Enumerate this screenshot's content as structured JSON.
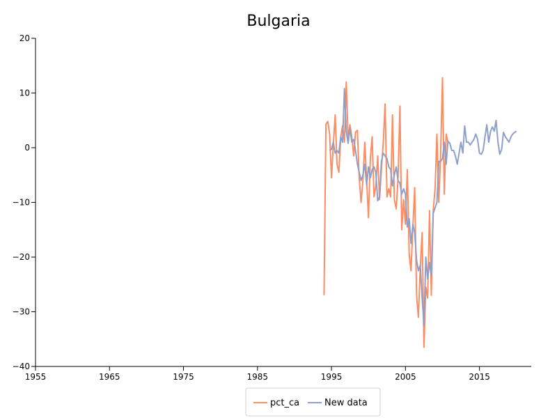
{
  "chart_data": {
    "type": "line",
    "title": "Bulgaria",
    "xlabel": "",
    "ylabel": "",
    "xlim": [
      1955,
      2022
    ],
    "ylim": [
      -40,
      20
    ],
    "x_ticks": [
      1955,
      1965,
      1975,
      1985,
      1995,
      2005,
      2015
    ],
    "y_ticks": [
      -40,
      -30,
      -20,
      -10,
      0,
      10,
      20
    ],
    "grid": false,
    "legend": "bottom-center",
    "series": [
      {
        "name": "pct_ca",
        "color": "#fc8d62",
        "x": [
          1994.0,
          1994.25,
          1994.5,
          1994.75,
          1995.0,
          1995.25,
          1995.5,
          1995.75,
          1996.0,
          1996.25,
          1996.5,
          1996.75,
          1997.0,
          1997.25,
          1997.5,
          1997.75,
          1998.0,
          1998.25,
          1998.5,
          1998.75,
          1999.0,
          1999.25,
          1999.5,
          1999.75,
          2000.0,
          2000.25,
          2000.5,
          2000.75,
          2001.0,
          2001.25,
          2001.5,
          2001.75,
          2002.0,
          2002.25,
          2002.5,
          2002.75,
          2003.0,
          2003.25,
          2003.5,
          2003.75,
          2004.0,
          2004.25,
          2004.5,
          2004.75,
          2005.0,
          2005.25,
          2005.5,
          2005.75,
          2006.0,
          2006.25,
          2006.5,
          2006.75,
          2007.0,
          2007.25,
          2007.5,
          2007.75,
          2008.0,
          2008.25,
          2008.5,
          2008.75,
          2009.0,
          2009.25,
          2009.5,
          2009.75,
          2010.0,
          2010.25,
          2010.5,
          2010.75
        ],
        "y": [
          -27,
          4.3,
          4.8,
          2.5,
          -5.5,
          0.5,
          6.0,
          -3.0,
          -4.5,
          2.0,
          4.0,
          1.0,
          12.0,
          1.5,
          4.2,
          2.0,
          -1.5,
          2.8,
          3.2,
          -5.5,
          -10.0,
          -6.0,
          1.0,
          -6.0,
          -12.8,
          -2.0,
          2.0,
          -9.0,
          -7.0,
          -1.5,
          -9.5,
          -4.0,
          1.0,
          8.0,
          -9.0,
          -7.5,
          -9.0,
          6.0,
          -9.5,
          -11.2,
          -5.5,
          7.6,
          -15.0,
          -9.5,
          -14.0,
          -4.0,
          -19.5,
          -22.5,
          -14.5,
          -7.3,
          -27.0,
          -31.0,
          -22.0,
          -15.5,
          -36.5,
          -25.5,
          -27.5,
          -11.5,
          -27.0,
          -11.5,
          -7.5,
          2.5,
          -10.0,
          -1.5,
          12.8,
          -8.5,
          2.5,
          1.0
        ]
      },
      {
        "name": "New data",
        "color": "#8da0cb",
        "x": [
          1994.75,
          1995.0,
          1995.25,
          1995.5,
          1995.75,
          1996.0,
          1996.25,
          1996.5,
          1996.75,
          1997.0,
          1997.25,
          1997.5,
          1997.75,
          1998.0,
          1998.25,
          1998.5,
          1998.75,
          1999.0,
          1999.25,
          1999.5,
          1999.75,
          2000.0,
          2000.25,
          2000.5,
          2000.75,
          2001.0,
          2001.25,
          2001.5,
          2001.75,
          2002.0,
          2002.25,
          2002.5,
          2002.75,
          2003.0,
          2003.25,
          2003.5,
          2003.75,
          2004.0,
          2004.25,
          2004.5,
          2004.75,
          2005.0,
          2005.25,
          2005.5,
          2005.75,
          2006.0,
          2006.25,
          2006.5,
          2006.75,
          2007.0,
          2007.25,
          2007.5,
          2007.75,
          2008.0,
          2008.25,
          2008.5,
          2008.75,
          2009.0,
          2009.25,
          2009.5,
          2009.75,
          2010.0,
          2010.25,
          2010.5,
          2010.75,
          2011.0,
          2011.25,
          2011.5,
          2011.75,
          2012.0,
          2012.25,
          2012.5,
          2012.75,
          2013.0,
          2013.25,
          2013.5,
          2013.75,
          2014.0,
          2014.25,
          2014.5,
          2014.75,
          2015.0,
          2015.25,
          2015.5,
          2015.75,
          2016.0,
          2016.25,
          2016.5,
          2016.75,
          2017.0,
          2017.25,
          2017.5,
          2017.75,
          2018.0,
          2018.25,
          2018.5,
          2018.75,
          2019.0,
          2019.25,
          2019.5,
          2019.75,
          2020.0
        ],
        "y": [
          -0.5,
          -0.3,
          1.0,
          -1.0,
          -0.5,
          -1.0,
          2.0,
          1.0,
          10.8,
          3.0,
          0.8,
          3.5,
          1.0,
          1.5,
          -0.5,
          -3.0,
          -4.5,
          -6.0,
          -5.0,
          -3.0,
          -6.8,
          -3.5,
          -5.5,
          -4.0,
          -3.5,
          -4.5,
          -9.7,
          -9.0,
          -2.5,
          -1.0,
          -1.5,
          -2.0,
          -3.5,
          -4.0,
          -7.0,
          -5.0,
          -3.5,
          -6.0,
          -6.5,
          -8.5,
          -7.5,
          -8.5,
          -14.5,
          -13.0,
          -17.5,
          -14.0,
          -15.5,
          -20.5,
          -22.5,
          -21.5,
          -27.5,
          -32.5,
          -20.0,
          -24.0,
          -21.0,
          -23.5,
          -12.0,
          -11.0,
          -10.0,
          -2.5,
          -2.5,
          -2.0,
          1.0,
          -3.0,
          1.2,
          0.8,
          -0.5,
          -0.5,
          -1.5,
          -3.0,
          -1.0,
          1.0,
          -1.0,
          4.0,
          1.0,
          1.0,
          0.5,
          1.0,
          1.5,
          2.5,
          1.5,
          -1.0,
          -1.2,
          -0.5,
          2.0,
          4.2,
          1.0,
          3.0,
          3.8,
          3.0,
          5.0,
          1.0,
          -1.2,
          -0.3,
          2.8,
          2.0,
          1.5,
          1.0,
          2.0,
          2.5,
          2.8,
          3.0
        ]
      }
    ]
  }
}
